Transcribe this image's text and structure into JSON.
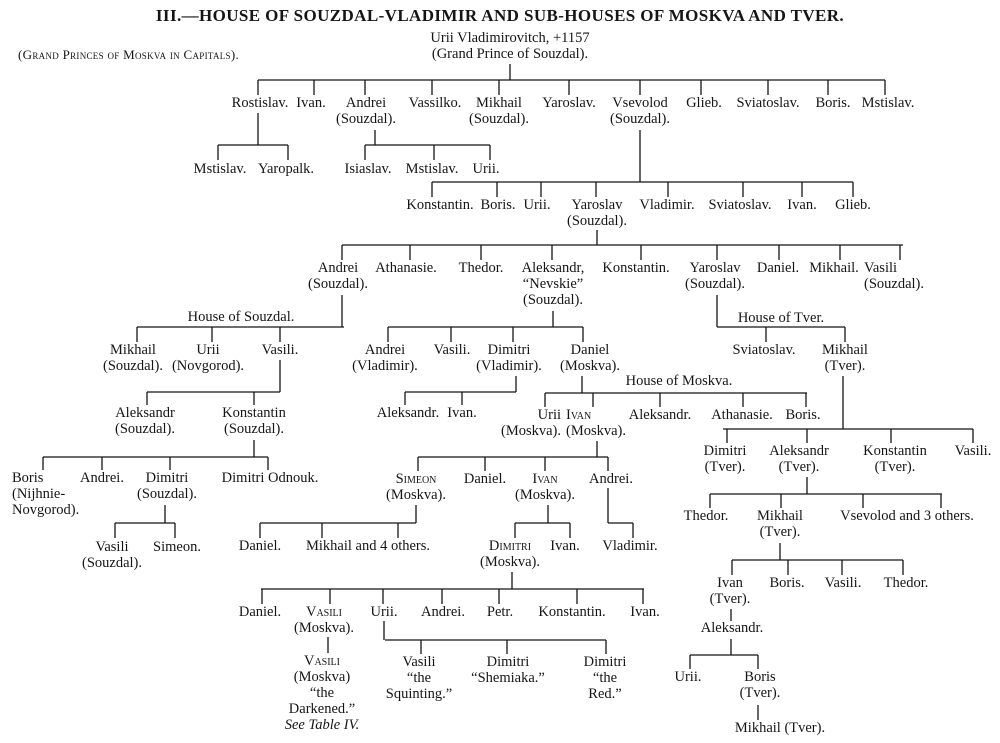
{
  "title": "III.—HOUSE OF SOUZDAL-VLADIMIR AND SUB-HOUSES OF MOSKVA AND TVER.",
  "subtitle": "(Grand Princes of Moskva in Capitals).",
  "colors": {
    "ink": "#151515",
    "paper": "#ffffff"
  },
  "house_labels": {
    "souzdal": "House of Souzdal.",
    "moskva": "House of Moskva.",
    "tver": "House of Tver."
  },
  "tree": {
    "nodes": [
      {
        "id": "root",
        "lines": [
          "Urii Vladimirovitch, +1157",
          "(Grand Prince of Souzdal)."
        ]
      },
      {
        "id": "rostislav",
        "lines": [
          "Rostislav."
        ]
      },
      {
        "id": "ivan1",
        "lines": [
          "Ivan."
        ]
      },
      {
        "id": "andrei1",
        "lines": [
          "Andrei",
          "(Souzdal)."
        ]
      },
      {
        "id": "vassilko",
        "lines": [
          "Vassilko."
        ]
      },
      {
        "id": "mikhail1",
        "lines": [
          "Mikhail",
          "(Souzdal)."
        ]
      },
      {
        "id": "yaroslav1",
        "lines": [
          "Yaroslav."
        ]
      },
      {
        "id": "vsevolod",
        "lines": [
          "Vsevolod",
          "(Souzdal)."
        ]
      },
      {
        "id": "glieb1",
        "lines": [
          "Glieb."
        ]
      },
      {
        "id": "sviatoslav1",
        "lines": [
          "Sviatoslav."
        ]
      },
      {
        "id": "boris1",
        "lines": [
          "Boris."
        ]
      },
      {
        "id": "mstislav1",
        "lines": [
          "Mstislav."
        ]
      },
      {
        "id": "mstislav2",
        "lines": [
          "Mstislav."
        ]
      },
      {
        "id": "yaropalk",
        "lines": [
          "Yaropalk."
        ]
      },
      {
        "id": "isiaslav",
        "lines": [
          "Isiaslav."
        ]
      },
      {
        "id": "mstislav3",
        "lines": [
          "Mstislav."
        ]
      },
      {
        "id": "urii1",
        "lines": [
          "Urii."
        ]
      },
      {
        "id": "konstantin1",
        "lines": [
          "Konstantin."
        ]
      },
      {
        "id": "boris2",
        "lines": [
          "Boris."
        ]
      },
      {
        "id": "urii2",
        "lines": [
          "Urii."
        ]
      },
      {
        "id": "yaroslav2",
        "lines": [
          "Yaroslav",
          "(Souzdal)."
        ]
      },
      {
        "id": "vladimir1",
        "lines": [
          "Vladimir."
        ]
      },
      {
        "id": "sviatoslav2",
        "lines": [
          "Sviatoslav."
        ]
      },
      {
        "id": "ivan2",
        "lines": [
          "Ivan."
        ]
      },
      {
        "id": "glieb2",
        "lines": [
          "Glieb."
        ]
      },
      {
        "id": "andrei2",
        "lines": [
          "Andrei",
          "(Souzdal)."
        ]
      },
      {
        "id": "athanasie1",
        "lines": [
          "Athanasie."
        ]
      },
      {
        "id": "thedor1",
        "lines": [
          "Thedor."
        ]
      },
      {
        "id": "aleksandrN",
        "lines": [
          "Aleksandr,",
          "“Nevskie”",
          "(Souzdal)."
        ]
      },
      {
        "id": "konstantin2",
        "lines": [
          "Konstantin."
        ]
      },
      {
        "id": "yaroslav3",
        "lines": [
          "Yaroslav",
          "(Souzdal)."
        ]
      },
      {
        "id": "daniel1",
        "lines": [
          "Daniel."
        ]
      },
      {
        "id": "mikhail2",
        "lines": [
          "Mikhail."
        ]
      },
      {
        "id": "vasili1",
        "lines": [
          "Vasili",
          "(Souzdal)."
        ]
      },
      {
        "id": "mikhail3",
        "lines": [
          "Mikhail",
          "(Souzdal)."
        ]
      },
      {
        "id": "urii3",
        "lines": [
          "Urii",
          "(Novgorod)."
        ]
      },
      {
        "id": "vasili2",
        "lines": [
          "Vasili."
        ]
      },
      {
        "id": "aleksandr1",
        "lines": [
          "Aleksandr",
          "(Souzdal)."
        ]
      },
      {
        "id": "konstantin3",
        "lines": [
          "Konstantin",
          "(Souzdal)."
        ]
      },
      {
        "id": "boris3",
        "lines": [
          "Boris",
          "(Nijhnie-",
          "Novgorod)."
        ]
      },
      {
        "id": "andrei3",
        "lines": [
          "Andrei."
        ]
      },
      {
        "id": "dimitri1",
        "lines": [
          "Dimitri",
          "(Souzdal)."
        ]
      },
      {
        "id": "dimitriO",
        "lines": [
          "Dimitri Odnouk."
        ]
      },
      {
        "id": "vasili3",
        "lines": [
          "Vasili",
          "(Souzdal)."
        ]
      },
      {
        "id": "simeon1",
        "lines": [
          "Simeon."
        ]
      },
      {
        "id": "andrei4",
        "lines": [
          "Andrei",
          "(Vladimir)."
        ]
      },
      {
        "id": "vasili4",
        "lines": [
          "Vasili."
        ]
      },
      {
        "id": "dimitri2",
        "lines": [
          "Dimitri",
          "(Vladimir)."
        ]
      },
      {
        "id": "daniel2",
        "lines": [
          "Daniel",
          "(Moskva)."
        ]
      },
      {
        "id": "aleksandr2",
        "lines": [
          "Aleksandr."
        ]
      },
      {
        "id": "ivan3",
        "lines": [
          "Ivan."
        ]
      },
      {
        "id": "urii4",
        "lines": [
          "Urii",
          "(Moskva)."
        ]
      },
      {
        "id": "ivanM",
        "lines": [
          "Ivan",
          "(Moskva)."
        ],
        "capitals": true
      },
      {
        "id": "aleksandr3",
        "lines": [
          "Aleksandr."
        ]
      },
      {
        "id": "athanasie2",
        "lines": [
          "Athanasie."
        ]
      },
      {
        "id": "boris4",
        "lines": [
          "Boris."
        ]
      },
      {
        "id": "simeonM",
        "lines": [
          "Simeon",
          "(Moskva)."
        ],
        "capitals": true
      },
      {
        "id": "daniel3",
        "lines": [
          "Daniel."
        ]
      },
      {
        "id": "ivanM2",
        "lines": [
          "Ivan",
          "(Moskva)."
        ],
        "capitals": true
      },
      {
        "id": "andrei5",
        "lines": [
          "Andrei."
        ]
      },
      {
        "id": "daniel4",
        "lines": [
          "Daniel."
        ]
      },
      {
        "id": "mikhail4",
        "lines": [
          "Mikhail and 4 others."
        ]
      },
      {
        "id": "dimitriM",
        "lines": [
          "Dimitri",
          "(Moskva)."
        ],
        "capitals": true
      },
      {
        "id": "ivan4",
        "lines": [
          "Ivan."
        ]
      },
      {
        "id": "vladimir2",
        "lines": [
          "Vladimir."
        ]
      },
      {
        "id": "daniel5",
        "lines": [
          "Daniel."
        ]
      },
      {
        "id": "vasiliM",
        "lines": [
          "Vasili",
          "(Moskva)."
        ],
        "capitals": true
      },
      {
        "id": "urii5",
        "lines": [
          "Urii."
        ]
      },
      {
        "id": "andrei6",
        "lines": [
          "Andrei."
        ]
      },
      {
        "id": "petr",
        "lines": [
          "Petr."
        ]
      },
      {
        "id": "konstantin4",
        "lines": [
          "Konstantin."
        ]
      },
      {
        "id": "ivan5",
        "lines": [
          "Ivan."
        ]
      },
      {
        "id": "vasili5",
        "lines": [
          "Vasili",
          "“the",
          "Squinting.”"
        ]
      },
      {
        "id": "dimitri3",
        "lines": [
          "Dimitri",
          "“Shemiaka.”"
        ]
      },
      {
        "id": "dimitri4",
        "lines": [
          "Dimitri",
          "“the",
          "Red.”"
        ]
      },
      {
        "id": "vasiliM2",
        "lines": [
          "Vasili",
          "(Moskva)",
          "“the",
          "Darkened.”"
        ],
        "capitals": true,
        "note": "See Table IV."
      },
      {
        "id": "sviatoslav3",
        "lines": [
          "Sviatoslav."
        ]
      },
      {
        "id": "mikhailT",
        "lines": [
          "Mikhail",
          "(Tver)."
        ]
      },
      {
        "id": "dimitriT",
        "lines": [
          "Dimitri",
          "(Tver)."
        ]
      },
      {
        "id": "aleksandrT",
        "lines": [
          "Aleksandr",
          "(Tver)."
        ]
      },
      {
        "id": "konstantinT",
        "lines": [
          "Konstantin",
          "(Tver)."
        ]
      },
      {
        "id": "vasiliT",
        "lines": [
          "Vasili."
        ]
      },
      {
        "id": "thedor2",
        "lines": [
          "Thedor."
        ]
      },
      {
        "id": "mikhailT2",
        "lines": [
          "Mikhail",
          "(Tver)."
        ]
      },
      {
        "id": "vsevolod2",
        "lines": [
          "Vsevolod and 3 others."
        ]
      },
      {
        "id": "ivanT",
        "lines": [
          "Ivan",
          "(Tver)."
        ]
      },
      {
        "id": "boris5",
        "lines": [
          "Boris."
        ]
      },
      {
        "id": "vasili6",
        "lines": [
          "Vasili."
        ]
      },
      {
        "id": "thedor3",
        "lines": [
          "Thedor."
        ]
      },
      {
        "id": "aleksandr4",
        "lines": [
          "Aleksandr."
        ]
      },
      {
        "id": "urii6",
        "lines": [
          "Urii."
        ]
      },
      {
        "id": "borisT",
        "lines": [
          "Boris",
          "(Tver)."
        ]
      },
      {
        "id": "mikhailT3",
        "lines": [
          "Mikhail (Tver)."
        ]
      }
    ]
  }
}
